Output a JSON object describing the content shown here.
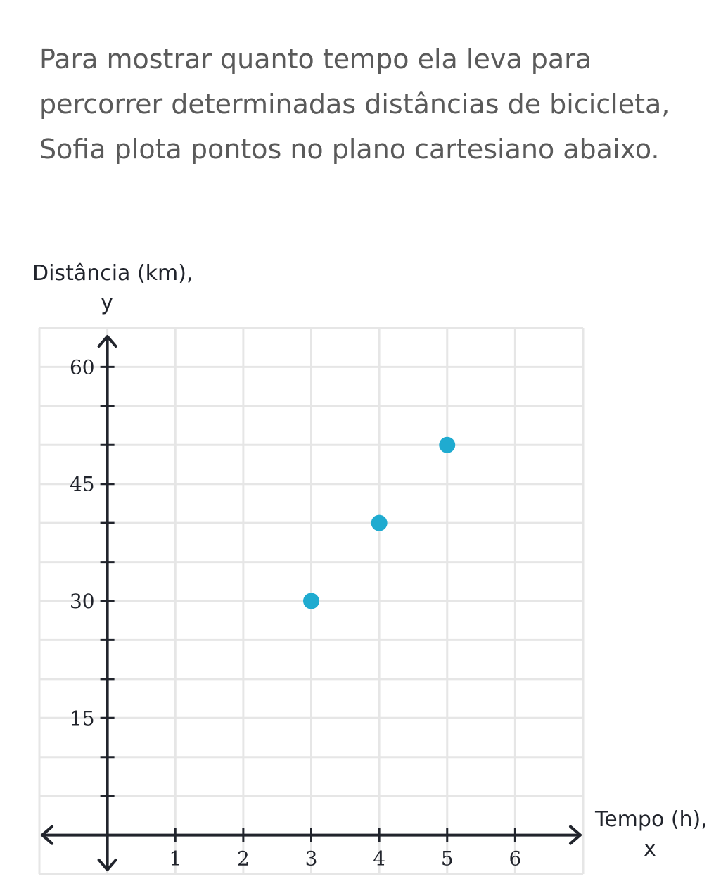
{
  "question": {
    "lines": [
      "Para mostrar quanto tempo ela leva para",
      "percorrer determinadas distâncias de bicicleta,",
      "Sofia plota pontos no plano cartesiano abaixo."
    ]
  },
  "chart_data": {
    "type": "scatter",
    "xlabel": "Tempo (h),",
    "xvar": "x",
    "ylabel": "Distância (km),",
    "yvar": "y",
    "xlim": [
      -1,
      7
    ],
    "ylim": [
      -5,
      65
    ],
    "x_ticks": [
      1,
      2,
      3,
      4,
      5,
      6
    ],
    "x_tick_labels": [
      "1",
      "2",
      "3",
      "4",
      "5",
      "6"
    ],
    "y_ticks": [
      5,
      10,
      15,
      20,
      25,
      30,
      35,
      40,
      45,
      50,
      55,
      60
    ],
    "y_tick_labels": [
      "15",
      "30",
      "45",
      "60"
    ],
    "y_labeled_values": [
      15,
      30,
      45,
      60
    ],
    "grid": true,
    "points": [
      {
        "x": 3,
        "y": 30
      },
      {
        "x": 4,
        "y": 40
      },
      {
        "x": 5,
        "y": 50
      }
    ],
    "point_color": "#1fabd0",
    "grid_color": "#e6e6e6",
    "axis_color": "#21242c"
  }
}
